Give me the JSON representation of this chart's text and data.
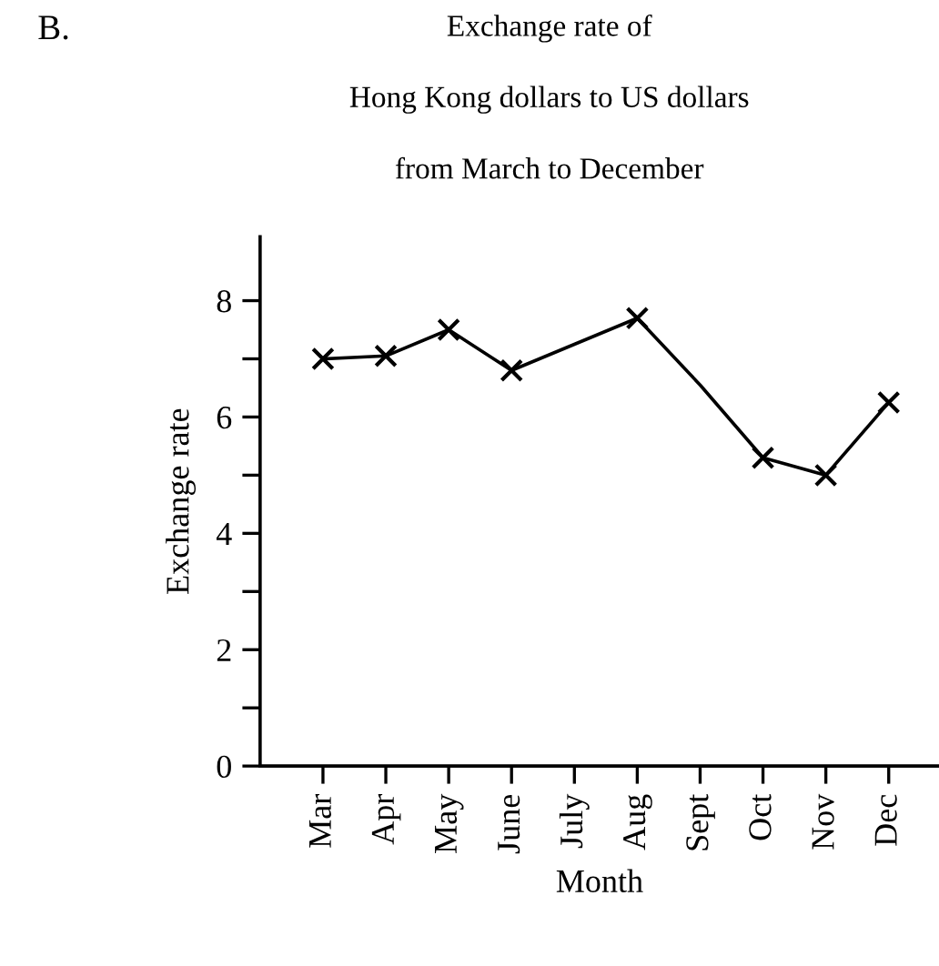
{
  "chart_data": {
    "type": "line",
    "title": "Exchange rate of\nHong Kong dollars to US dollars\nfrom March to December",
    "xlabel": "Month",
    "ylabel": "Exchange rate",
    "annotations": [
      "B."
    ],
    "categories": [
      "Mar",
      "Apr",
      "May",
      "June",
      "July",
      "Aug",
      "Sept",
      "Oct",
      "Nov",
      "Dec"
    ],
    "series": [
      {
        "color": "#000000",
        "values": [
          7.0,
          7.05,
          7.5,
          6.8,
          7.25,
          7.7,
          6.55,
          5.3,
          5.0,
          6.25
        ]
      },
      {
        "type": "scatter",
        "color": "#000000",
        "marker": "cross",
        "values": [
          7.0,
          7.05,
          7.5,
          6.8,
          null,
          7.7,
          null,
          5.3,
          5.0,
          6.25
        ]
      }
    ],
    "ylim": [
      0,
      9.1
    ],
    "yticks": [
      0,
      {
        "value": 1,
        "label": null
      },
      2,
      {
        "value": 3,
        "label": null
      },
      4,
      {
        "value": 5,
        "label": null
      },
      6,
      {
        "value": 7,
        "label": null
      },
      8
    ],
    "grid": false,
    "legend": false
  }
}
